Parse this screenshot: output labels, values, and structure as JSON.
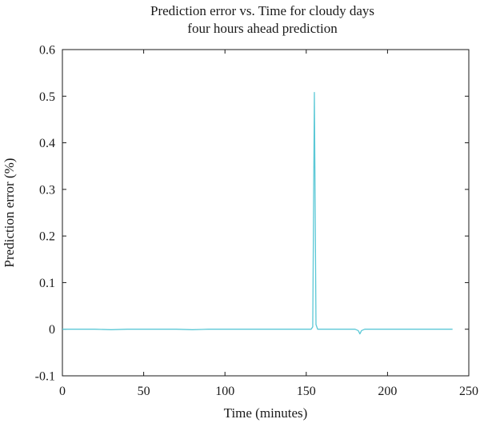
{
  "chart_data": {
    "type": "line",
    "title_lines": [
      "Prediction error vs. Time for cloudy days",
      "four hours ahead prediction"
    ],
    "xlabel": "Time (minutes)",
    "ylabel": "Prediction error (%)",
    "xlim": [
      0,
      250
    ],
    "ylim": [
      -0.1,
      0.6
    ],
    "x_ticks": [
      0,
      50,
      100,
      150,
      200,
      250
    ],
    "y_ticks": [
      -0.1,
      0,
      0.1,
      0.2,
      0.3,
      0.4,
      0.5,
      0.6
    ],
    "grid": false,
    "legend": "none",
    "series": [
      {
        "color": "#5bc8d6",
        "x": [
          0,
          10,
          20,
          30,
          40,
          50,
          60,
          70,
          80,
          90,
          100,
          110,
          120,
          130,
          140,
          150,
          153,
          154,
          155,
          156,
          157,
          158,
          160,
          165,
          170,
          175,
          180,
          182,
          183,
          184,
          186,
          190,
          200,
          210,
          220,
          230,
          240
        ],
        "y": [
          0.0,
          0.0,
          0.0,
          -0.001,
          0.0,
          0.0,
          0.0,
          0.0,
          -0.001,
          0.0,
          0.0,
          0.0,
          0.0,
          0.0,
          0.0,
          0.0,
          0.0,
          0.005,
          0.508,
          0.01,
          0.0,
          0.0,
          0.0,
          0.0,
          0.0,
          0.0,
          0.0,
          -0.003,
          -0.01,
          -0.003,
          0.0,
          0.0,
          0.0,
          0.0,
          0.0,
          0.0,
          0.0
        ]
      }
    ]
  }
}
